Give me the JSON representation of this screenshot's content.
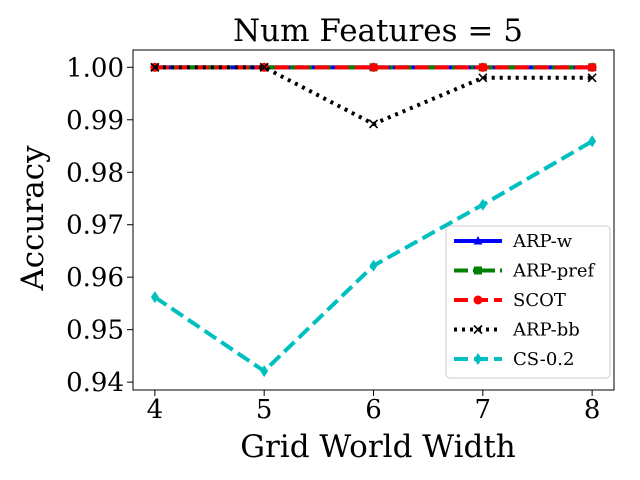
{
  "chart_data": {
    "type": "line",
    "title": "Num Features = 5",
    "xlabel": "Grid World Width",
    "ylabel": "Accuracy",
    "x": [
      4,
      5,
      6,
      7,
      8
    ],
    "xlim": [
      3.8,
      8.2
    ],
    "ylim": [
      0.9385,
      1.0033
    ],
    "xticks": [
      4,
      5,
      6,
      7,
      8
    ],
    "xtick_labels": [
      "4",
      "5",
      "6",
      "7",
      "8"
    ],
    "yticks": [
      0.94,
      0.95,
      0.96,
      0.97,
      0.98,
      0.99,
      1.0
    ],
    "ytick_labels": [
      "0.94",
      "0.95",
      "0.96",
      "0.97",
      "0.98",
      "0.99",
      "1.00"
    ],
    "grid": false,
    "legend_position": "lower-right",
    "series": [
      {
        "name": "ARP-w",
        "values": [
          1.0,
          1.0,
          1.0,
          1.0,
          1.0
        ],
        "color": "#0000ff",
        "dash": "solid",
        "marker": "triangle"
      },
      {
        "name": "ARP-pref",
        "values": [
          1.0,
          1.0,
          1.0,
          1.0,
          1.0
        ],
        "color": "#008000",
        "dash": "dashdot",
        "marker": "square"
      },
      {
        "name": "SCOT",
        "values": [
          1.0,
          1.0,
          1.0,
          1.0,
          1.0
        ],
        "color": "#ff0000",
        "dash": "dashed",
        "marker": "circle"
      },
      {
        "name": "ARP-bb",
        "values": [
          1.0,
          1.0,
          0.9892,
          0.998,
          0.998
        ],
        "color": "#000000",
        "dash": "dotted",
        "marker": "x"
      },
      {
        "name": "CS-0.2",
        "values": [
          0.9562,
          0.9421,
          0.9622,
          0.9738,
          0.9859
        ],
        "color": "#00bfbf",
        "dash": "dashed",
        "marker": "diamond"
      }
    ]
  }
}
